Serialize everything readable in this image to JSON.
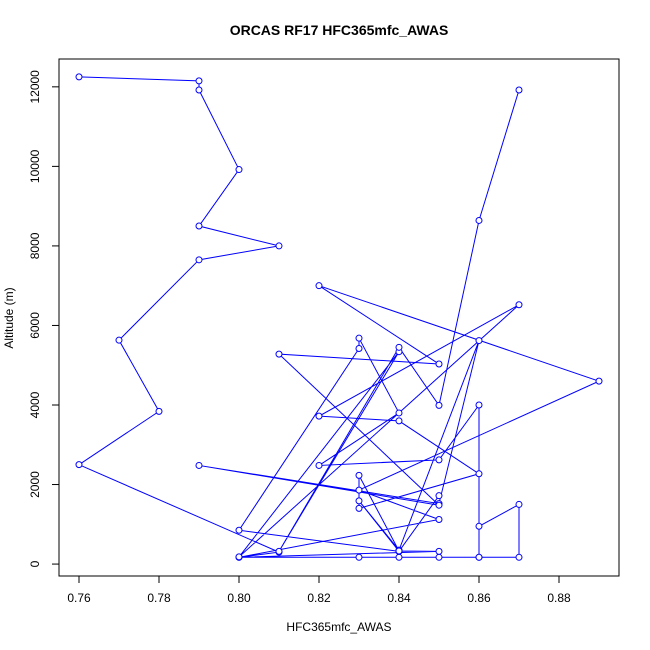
{
  "chart_data": {
    "type": "line",
    "title": "ORCAS RF17 HFC365mfc_AWAS",
    "xlabel": "HFC365mfc_AWAS",
    "ylabel": "Altitude (m)",
    "xlim": [
      0.755,
      0.895
    ],
    "ylim": [
      -300,
      12700
    ],
    "xticks": [
      0.76,
      0.78,
      0.8,
      0.82,
      0.84,
      0.86,
      0.88
    ],
    "xtick_labels": [
      "0.76",
      "0.78",
      "0.80",
      "0.82",
      "0.84",
      "0.86",
      "0.88"
    ],
    "yticks": [
      0,
      2000,
      4000,
      6000,
      8000,
      10000,
      12000
    ],
    "ytick_labels": [
      "0",
      "2000",
      "4000",
      "6000",
      "8000",
      "10000",
      "12000"
    ],
    "grid": false,
    "series_color": "#0000ff",
    "marker": "open-circle",
    "x": [
      0.76,
      0.79,
      0.79,
      0.8,
      0.79,
      0.81,
      0.79,
      0.77,
      0.78,
      0.76,
      0.81,
      0.8,
      0.83,
      0.84,
      0.85,
      0.86,
      0.86,
      0.87,
      0.87,
      0.86,
      0.86,
      0.85,
      0.82,
      0.84,
      0.83,
      0.83,
      0.8,
      0.84,
      0.85,
      0.84,
      0.83,
      0.84,
      0.86,
      0.85,
      0.79,
      0.85,
      0.81,
      0.85,
      0.82,
      0.89,
      0.83,
      0.85,
      0.8,
      0.85,
      0.84,
      0.83,
      0.83,
      0.86,
      0.84,
      0.82,
      0.87,
      0.8,
      0.84,
      0.81,
      0.84,
      0.85,
      0.86,
      0.87
    ],
    "y": [
      12250,
      12150,
      11920,
      9920,
      8500,
      8000,
      7650,
      5630,
      3840,
      2500,
      300,
      170,
      170,
      170,
      170,
      170,
      950,
      1500,
      170,
      170,
      4000,
      2620,
      2480,
      3800,
      5680,
      5420,
      850,
      320,
      1720,
      320,
      1590,
      350,
      5620,
      1520,
      2480,
      1480,
      5280,
      5030,
      7000,
      4600,
      1860,
      1120,
      170,
      320,
      330,
      2230,
      1400,
      2270,
      3600,
      3720,
      6520,
      180,
      5340,
      320,
      5450,
      3990,
      8640,
      11920
    ]
  }
}
